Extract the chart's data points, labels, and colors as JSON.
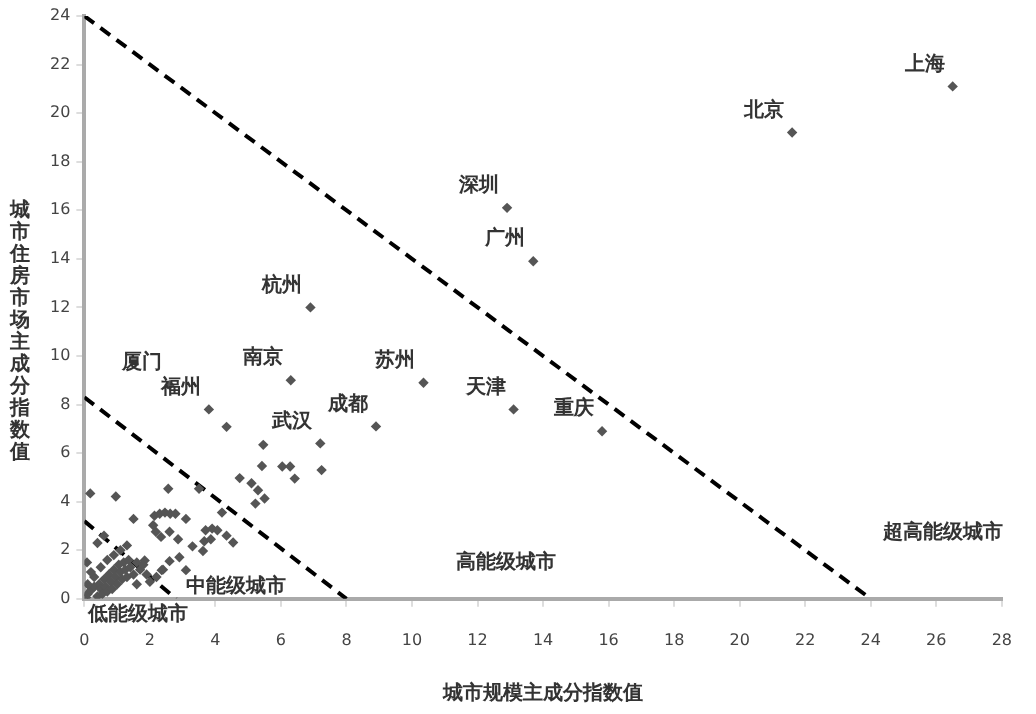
{
  "chart_data": {
    "type": "scatter",
    "xlabel": "城市规模主成分指数值",
    "ylabel": "城市住房市场主成分指数值",
    "xlim": [
      0,
      28
    ],
    "xticks": [
      0,
      2,
      4,
      6,
      8,
      10,
      12,
      14,
      16,
      18,
      20,
      22,
      24,
      26,
      28
    ],
    "ylim": [
      0,
      24
    ],
    "yticks": [
      0,
      2,
      4,
      6,
      8,
      10,
      12,
      14,
      16,
      18,
      20,
      22,
      24
    ],
    "grid": false,
    "legend": false,
    "marker": "diamond",
    "series": [
      {
        "type": "scatter",
        "color": "#555555",
        "x": [
          26.5,
          21.6,
          12.9,
          13.7,
          6.9,
          10.35,
          6.3,
          2.6,
          3.8,
          8.9,
          7.2,
          13.1,
          15.8,
          4.34,
          5.46,
          5.42,
          6.04,
          6.28,
          6.42,
          7.24,
          4.74,
          5.1,
          5.3,
          5.5,
          5.22,
          4.2,
          2.56,
          3.5,
          0.18,
          0.96,
          1.5,
          2.14,
          2.3,
          2.46,
          2.62,
          2.78,
          3.1,
          3.7,
          3.9,
          4.06,
          4.34,
          4.54,
          3.66,
          3.86,
          3.62,
          2.1,
          2.18,
          2.34,
          2.6,
          2.86,
          2.9,
          3.3,
          3.1,
          2.6,
          2.36,
          1.84,
          0.05,
          0.1,
          0.2,
          0.3,
          0.4,
          0.45,
          0.5,
          0.55,
          0.6,
          0.65,
          0.7,
          0.75,
          0.8,
          0.85,
          0.9,
          0.95,
          1.0,
          1.05,
          1.1,
          1.15,
          1.2,
          1.25,
          1.3,
          1.35,
          1.4,
          1.5,
          1.6,
          1.7,
          1.8,
          0.3,
          0.2,
          0.5,
          0.7,
          0.4,
          0.9,
          1.1,
          0.6,
          1.3,
          0.1,
          0.08,
          1.9,
          2.0,
          1.6,
          2.4,
          2.2
        ],
        "values": [
          21.1,
          19.2,
          16.1,
          13.9,
          12.0,
          8.9,
          9.0,
          8.8,
          7.8,
          7.1,
          6.4,
          7.8,
          6.9,
          7.08,
          6.34,
          5.47,
          5.45,
          5.45,
          4.95,
          5.3,
          4.97,
          4.76,
          4.47,
          4.13,
          3.92,
          3.55,
          4.53,
          4.53,
          4.34,
          4.21,
          3.29,
          3.42,
          3.5,
          3.55,
          3.5,
          3.5,
          3.29,
          2.82,
          2.89,
          2.82,
          2.6,
          2.32,
          2.37,
          2.45,
          1.97,
          3.03,
          2.76,
          2.55,
          2.76,
          2.45,
          1.71,
          2.16,
          1.18,
          1.55,
          1.18,
          1.58,
          0.05,
          0.2,
          0.35,
          0.5,
          0.1,
          0.6,
          0.4,
          0.2,
          0.8,
          0.5,
          0.3,
          1.0,
          0.7,
          0.4,
          1.2,
          0.9,
          0.6,
          1.4,
          1.1,
          0.8,
          1.5,
          1.2,
          0.9,
          1.6,
          1.3,
          1.0,
          1.5,
          1.2,
          1.4,
          0.9,
          1.1,
          1.3,
          1.6,
          2.3,
          1.8,
          2.0,
          2.6,
          2.2,
          0.6,
          1.5,
          1.0,
          0.7,
          0.6,
          1.2,
          0.9
        ],
        "value_labels": [
          "上海",
          "北京",
          "深圳",
          "广州",
          "杭州",
          "苏州",
          "南京",
          "厦门",
          "福州",
          "成都",
          "武汉",
          "天津",
          "重庆",
          null,
          null,
          null,
          null,
          null,
          null,
          null,
          null,
          null,
          null,
          null,
          null,
          null,
          null,
          null,
          null,
          null,
          null,
          null,
          null,
          null,
          null,
          null,
          null,
          null,
          null,
          null,
          null,
          null,
          null,
          null,
          null,
          null,
          null,
          null,
          null,
          null,
          null,
          null,
          null,
          null,
          null,
          null,
          null,
          null,
          null,
          null,
          null,
          null,
          null,
          null,
          null,
          null,
          null,
          null,
          null,
          null,
          null,
          null,
          null,
          null,
          null,
          null,
          null,
          null,
          null,
          null,
          null,
          null,
          null,
          null,
          null,
          null,
          null,
          null,
          null,
          null,
          null,
          null,
          null,
          null,
          null,
          null,
          null,
          null,
          null,
          null,
          null
        ]
      },
      {
        "type": "line",
        "color": "#000000",
        "line_style": "dashed",
        "marker": "none",
        "x": [
          0,
          24
        ],
        "values": [
          24,
          0
        ]
      },
      {
        "type": "line",
        "color": "#000000",
        "line_style": "dashed",
        "marker": "none",
        "x": [
          0,
          8
        ],
        "values": [
          8.3,
          0
        ]
      },
      {
        "type": "line",
        "color": "#000000",
        "line_style": "dashed",
        "marker": "none",
        "x": [
          0,
          2.8
        ],
        "values": [
          3.2,
          0
        ]
      }
    ],
    "annotations": [
      "超高能级城市",
      "高能级城市",
      "中能级城市",
      "低能级城市"
    ]
  }
}
